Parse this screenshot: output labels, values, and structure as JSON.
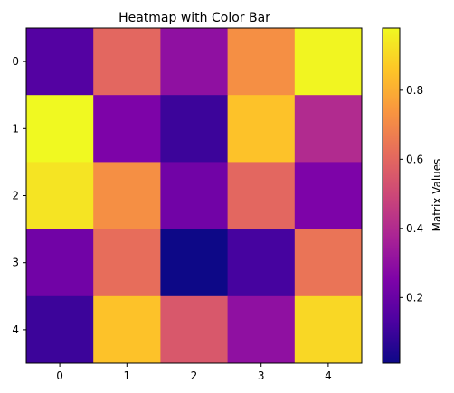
{
  "chart_data": {
    "type": "heatmap",
    "title": "Heatmap with Color Bar",
    "xlabel": "",
    "ylabel": "",
    "x_tick_labels": [
      "0",
      "1",
      "2",
      "3",
      "4"
    ],
    "y_tick_labels": [
      "0",
      "1",
      "2",
      "3",
      "4"
    ],
    "values": [
      [
        0.15,
        0.6,
        0.3,
        0.72,
        0.97
      ],
      [
        0.98,
        0.25,
        0.1,
        0.85,
        0.4
      ],
      [
        0.93,
        0.72,
        0.22,
        0.6,
        0.25
      ],
      [
        0.22,
        0.62,
        0.01,
        0.12,
        0.64
      ],
      [
        0.1,
        0.85,
        0.55,
        0.3,
        0.9
      ]
    ],
    "colormap": "plasma",
    "vmin": 0.01,
    "vmax": 0.98,
    "grid": false,
    "colorbar": {
      "label": "Matrix Values",
      "placement": "right",
      "tick_values": [
        0.2,
        0.4,
        0.6,
        0.8
      ],
      "tick_labels": [
        "0.2",
        "0.4",
        "0.6",
        "0.8"
      ]
    }
  }
}
